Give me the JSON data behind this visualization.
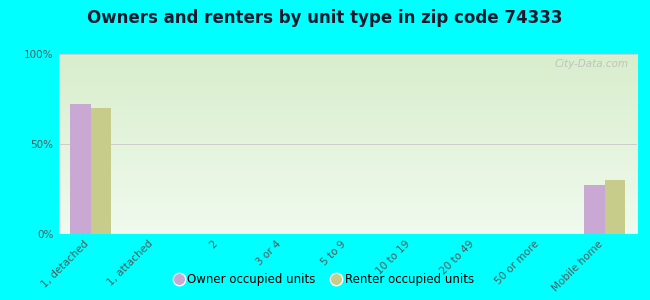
{
  "title": "Owners and renters by unit type in zip code 74333",
  "categories": [
    "1, detached",
    "1, attached",
    "2",
    "3 or 4",
    "5 to 9",
    "10 to 19",
    "20 to 49",
    "50 or more",
    "Mobile home"
  ],
  "owner_values": [
    72,
    0,
    0,
    0,
    0,
    0,
    0,
    0,
    27
  ],
  "renter_values": [
    70,
    0,
    0,
    0,
    0,
    0,
    0,
    0,
    30
  ],
  "owner_color": "#c9a8d4",
  "renter_color": "#c8cc8a",
  "background_color": "#00ffff",
  "plot_bg_color": "#e8f5e0",
  "ylim": [
    0,
    100
  ],
  "yticks": [
    0,
    50,
    100
  ],
  "ytick_labels": [
    "0%",
    "50%",
    "100%"
  ],
  "bar_width": 0.32,
  "legend_owner": "Owner occupied units",
  "legend_renter": "Renter occupied units",
  "grid_color": "#cccccc",
  "watermark": "City-Data.com",
  "title_fontsize": 12,
  "tick_fontsize": 7.5
}
